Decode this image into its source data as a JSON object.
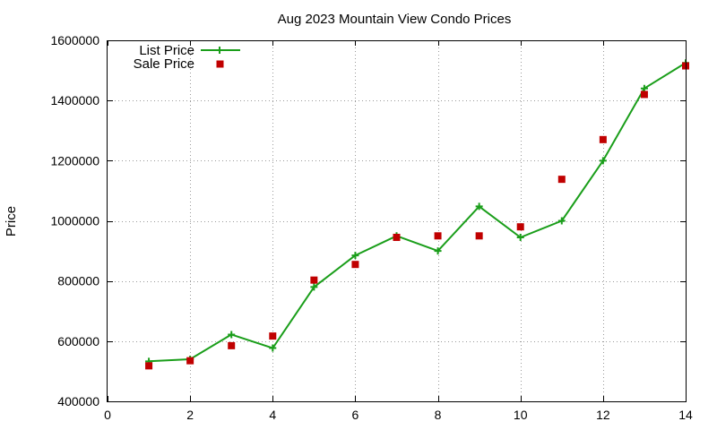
{
  "chart_data": {
    "type": "line",
    "title": "Aug 2023 Mountain View Condo Prices",
    "xlabel": "",
    "ylabel": "Price",
    "xlim": [
      0,
      14
    ],
    "ylim": [
      400000,
      1600000
    ],
    "x_ticks": [
      0,
      2,
      4,
      6,
      8,
      10,
      12,
      14
    ],
    "y_ticks": [
      400000,
      600000,
      800000,
      1000000,
      1200000,
      1400000,
      1600000
    ],
    "x_tick_labels": [
      "0",
      "2",
      "4",
      "6",
      "8",
      "10",
      "12",
      "14"
    ],
    "y_tick_labels": [
      "400000",
      "600000",
      "800000",
      "1000000",
      "1200000",
      "1400000",
      "1600000"
    ],
    "grid": true,
    "legend_position": "top-left",
    "series": [
      {
        "name": "List Price",
        "style": "line-with-plus-markers",
        "color": "#1a9e1a",
        "x": [
          1,
          2,
          3,
          4,
          5,
          6,
          7,
          8,
          9,
          10,
          11,
          12,
          13,
          14
        ],
        "values": [
          533000,
          540000,
          622000,
          577000,
          780000,
          885000,
          950000,
          900000,
          1048000,
          945000,
          1000000,
          1200000,
          1440000,
          1525000
        ]
      },
      {
        "name": "Sale Price",
        "style": "square-markers",
        "color": "#c00000",
        "x": [
          1,
          2,
          3,
          4,
          5,
          6,
          7,
          8,
          9,
          10,
          11,
          12,
          13,
          14
        ],
        "values": [
          518000,
          535000,
          585000,
          617000,
          803000,
          855000,
          945000,
          950000,
          950000,
          980000,
          1138000,
          1270000,
          1420000,
          1515000
        ]
      }
    ]
  }
}
